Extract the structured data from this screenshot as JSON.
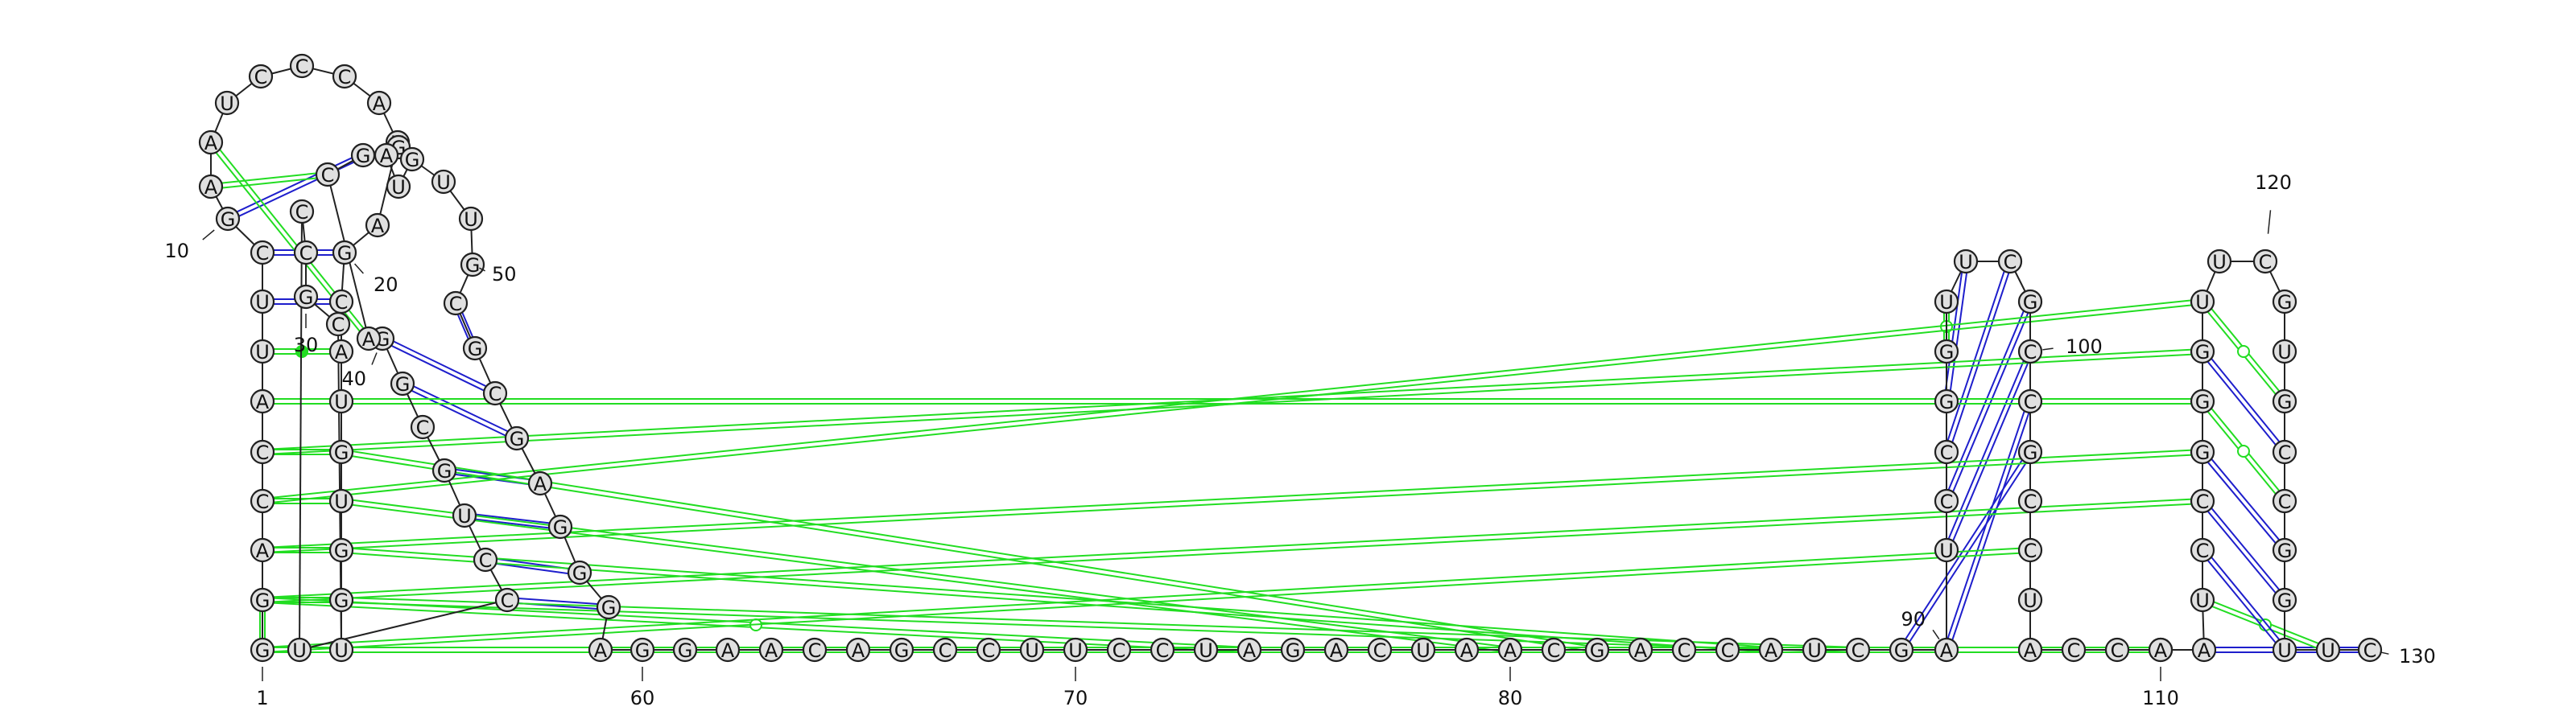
{
  "diagram": {
    "type": "rna-secondary-structure",
    "colors": {
      "canonical_pair": "#1e1ecc",
      "noncanonical_pair": "#22dd22",
      "backbone": "#222222",
      "nucleotide_fill": "#e0e0e0"
    },
    "nucleotides": [
      {
        "i": 1,
        "b": "G"
      },
      {
        "i": 2,
        "b": "G"
      },
      {
        "i": 3,
        "b": "A"
      },
      {
        "i": 4,
        "b": "C"
      },
      {
        "i": 5,
        "b": "C"
      },
      {
        "i": 6,
        "b": "A"
      },
      {
        "i": 7,
        "b": "U"
      },
      {
        "i": 8,
        "b": "U"
      },
      {
        "i": 9,
        "b": "C"
      },
      {
        "i": 10,
        "b": "G"
      },
      {
        "i": 11,
        "b": "A"
      },
      {
        "i": 12,
        "b": "A"
      },
      {
        "i": 13,
        "b": "U"
      },
      {
        "i": 14,
        "b": "C"
      },
      {
        "i": 15,
        "b": "C"
      },
      {
        "i": 16,
        "b": "C"
      },
      {
        "i": 17,
        "b": "A"
      },
      {
        "i": 18,
        "b": "U"
      },
      {
        "i": 19,
        "b": "A"
      },
      {
        "i": 20,
        "b": "G"
      },
      {
        "i": 21,
        "b": "C"
      },
      {
        "i": 22,
        "b": "A"
      },
      {
        "i": 23,
        "b": "U"
      },
      {
        "i": 24,
        "b": "G"
      },
      {
        "i": 25,
        "b": "U"
      },
      {
        "i": 26,
        "b": "G"
      },
      {
        "i": 27,
        "b": "G"
      },
      {
        "i": 28,
        "b": "U"
      },
      {
        "i": 29,
        "b": "C"
      },
      {
        "i": 30,
        "b": "G"
      },
      {
        "i": 31,
        "b": "C"
      },
      {
        "i": 32,
        "b": "C"
      },
      {
        "i": 33,
        "b": "U"
      },
      {
        "i": 34,
        "b": "C"
      },
      {
        "i": 35,
        "b": "C"
      },
      {
        "i": 36,
        "b": "U"
      },
      {
        "i": 37,
        "b": "G"
      },
      {
        "i": 38,
        "b": "C"
      },
      {
        "i": 39,
        "b": "G"
      },
      {
        "i": 40,
        "b": "G"
      },
      {
        "i": 41,
        "b": "A"
      },
      {
        "i": 42,
        "b": "C"
      },
      {
        "i": 43,
        "b": "G"
      },
      {
        "i": 44,
        "b": "G"
      },
      {
        "i": 45,
        "b": "A"
      },
      {
        "i": 46,
        "b": "U"
      },
      {
        "i": 47,
        "b": "G"
      },
      {
        "i": 48,
        "b": "U"
      },
      {
        "i": 49,
        "b": "U"
      },
      {
        "i": 50,
        "b": "G"
      },
      {
        "i": 51,
        "b": "C"
      },
      {
        "i": 52,
        "b": "G"
      },
      {
        "i": 53,
        "b": "C"
      },
      {
        "i": 54,
        "b": "G"
      },
      {
        "i": 55,
        "b": "A"
      },
      {
        "i": 56,
        "b": "G"
      },
      {
        "i": 57,
        "b": "G"
      },
      {
        "i": 58,
        "b": "G"
      },
      {
        "i": 59,
        "b": "A"
      },
      {
        "i": 60,
        "b": "G"
      },
      {
        "i": 61,
        "b": "G"
      },
      {
        "i": 62,
        "b": "A"
      },
      {
        "i": 63,
        "b": "A"
      },
      {
        "i": 64,
        "b": "C"
      },
      {
        "i": 65,
        "b": "A"
      },
      {
        "i": 66,
        "b": "G"
      },
      {
        "i": 67,
        "b": "C"
      },
      {
        "i": 68,
        "b": "C"
      },
      {
        "i": 69,
        "b": "U"
      },
      {
        "i": 70,
        "b": "U"
      },
      {
        "i": 71,
        "b": "C"
      },
      {
        "i": 72,
        "b": "C"
      },
      {
        "i": 73,
        "b": "U"
      },
      {
        "i": 74,
        "b": "A"
      },
      {
        "i": 75,
        "b": "G"
      },
      {
        "i": 76,
        "b": "A"
      },
      {
        "i": 77,
        "b": "C"
      },
      {
        "i": 78,
        "b": "U"
      },
      {
        "i": 79,
        "b": "A"
      },
      {
        "i": 80,
        "b": "A"
      },
      {
        "i": 81,
        "b": "C"
      },
      {
        "i": 82,
        "b": "G"
      },
      {
        "i": 83,
        "b": "A"
      },
      {
        "i": 84,
        "b": "C"
      },
      {
        "i": 85,
        "b": "C"
      },
      {
        "i": 86,
        "b": "A"
      },
      {
        "i": 87,
        "b": "U"
      },
      {
        "i": 88,
        "b": "C"
      },
      {
        "i": 89,
        "b": "G"
      },
      {
        "i": 90,
        "b": "A"
      },
      {
        "i": 91,
        "b": "U"
      },
      {
        "i": 92,
        "b": "C"
      },
      {
        "i": 93,
        "b": "C"
      },
      {
        "i": 94,
        "b": "G"
      },
      {
        "i": 95,
        "b": "G"
      },
      {
        "i": 96,
        "b": "U"
      },
      {
        "i": 97,
        "b": "U"
      },
      {
        "i": 98,
        "b": "C"
      },
      {
        "i": 99,
        "b": "G"
      },
      {
        "i": 100,
        "b": "C"
      },
      {
        "i": 101,
        "b": "C"
      },
      {
        "i": 102,
        "b": "G"
      },
      {
        "i": 103,
        "b": "C"
      },
      {
        "i": 104,
        "b": "C"
      },
      {
        "i": 105,
        "b": "U"
      },
      {
        "i": 106,
        "b": "A"
      },
      {
        "i": 107,
        "b": "C"
      },
      {
        "i": 108,
        "b": "C"
      },
      {
        "i": 109,
        "b": "A"
      },
      {
        "i": 110,
        "b": "A"
      },
      {
        "i": 111,
        "b": "A"
      },
      {
        "i": 112,
        "b": "U"
      },
      {
        "i": 113,
        "b": "C"
      },
      {
        "i": 114,
        "b": "C"
      },
      {
        "i": 115,
        "b": "G"
      },
      {
        "i": 116,
        "b": "G"
      },
      {
        "i": 117,
        "b": "G"
      },
      {
        "i": 118,
        "b": "U"
      },
      {
        "i": 119,
        "b": "U"
      },
      {
        "i": 120,
        "b": "C"
      },
      {
        "i": 121,
        "b": "G"
      },
      {
        "i": 122,
        "b": "U"
      },
      {
        "i": 123,
        "b": "G"
      },
      {
        "i": 124,
        "b": "C"
      },
      {
        "i": 125,
        "b": "C"
      },
      {
        "i": 126,
        "b": "G"
      },
      {
        "i": 127,
        "b": "G"
      },
      {
        "i": 128,
        "b": "U"
      },
      {
        "i": 129,
        "b": "U"
      },
      {
        "i": 130,
        "b": "C"
      }
    ],
    "pairs": [
      {
        "a": 1,
        "b": 2,
        "kind": "noncanonical"
      },
      {
        "a": 9,
        "b": 20,
        "kind": "canonical"
      },
      {
        "a": 8,
        "b": 21,
        "kind": "canonical"
      },
      {
        "a": 7,
        "b": 22,
        "kind": "noncanonical_dot"
      },
      {
        "a": 6,
        "b": 23,
        "kind": "canonical"
      },
      {
        "a": 5,
        "b": 24,
        "kind": "noncanonical"
      },
      {
        "a": 4,
        "b": 25,
        "kind": "noncanonical"
      },
      {
        "a": 3,
        "b": 26,
        "kind": "noncanonical"
      },
      {
        "a": 2,
        "b": 27,
        "kind": "noncanonical"
      },
      {
        "a": 10,
        "b": 43,
        "kind": "canonical"
      },
      {
        "a": 11,
        "b": 42,
        "kind": "noncanonical"
      },
      {
        "a": 12,
        "b": 41,
        "kind": "noncanonical"
      },
      {
        "a": 51,
        "b": 52,
        "kind": "canonical"
      },
      {
        "a": 40,
        "b": 53,
        "kind": "canonical"
      },
      {
        "a": 39,
        "b": 54,
        "kind": "canonical"
      },
      {
        "a": 37,
        "b": 55,
        "kind": "canonical"
      },
      {
        "a": 36,
        "b": 56,
        "kind": "canonical"
      },
      {
        "a": 35,
        "b": 57,
        "kind": "canonical"
      },
      {
        "a": 34,
        "b": 58,
        "kind": "canonical"
      },
      {
        "a": 89,
        "b": 102,
        "kind": "canonical"
      },
      {
        "a": 90,
        "b": 101,
        "kind": "canonical"
      },
      {
        "a": 91,
        "b": 100,
        "kind": "canonical"
      },
      {
        "a": 92,
        "b": 99,
        "kind": "canonical"
      },
      {
        "a": 93,
        "b": 98,
        "kind": "canonical"
      },
      {
        "a": 94,
        "b": 97,
        "kind": "canonical"
      },
      {
        "a": 95,
        "b": 96,
        "kind": "noncanonical_dot"
      },
      {
        "a": 111,
        "b": 130,
        "kind": "canonical"
      },
      {
        "a": 112,
        "b": 129,
        "kind": "noncanonical_dot"
      },
      {
        "a": 113,
        "b": 128,
        "kind": "canonical"
      },
      {
        "a": 114,
        "b": 127,
        "kind": "canonical"
      },
      {
        "a": 115,
        "b": 126,
        "kind": "canonical"
      },
      {
        "a": 116,
        "b": 125,
        "kind": "noncanonical_dot"
      },
      {
        "a": 117,
        "b": 124,
        "kind": "canonical"
      },
      {
        "a": 118,
        "b": 123,
        "kind": "noncanonical_dot"
      },
      {
        "a": 4,
        "b": 118,
        "kind": "noncanonical"
      },
      {
        "a": 5,
        "b": 117,
        "kind": "noncanonical"
      },
      {
        "a": 6,
        "b": 116,
        "kind": "noncanonical"
      },
      {
        "a": 3,
        "b": 115,
        "kind": "noncanonical"
      },
      {
        "a": 2,
        "b": 114,
        "kind": "noncanonical"
      },
      {
        "a": 25,
        "b": 80,
        "kind": "noncanonical"
      },
      {
        "a": 24,
        "b": 82,
        "kind": "noncanonical"
      },
      {
        "a": 26,
        "b": 86,
        "kind": "noncanonical"
      },
      {
        "a": 27,
        "b": 88,
        "kind": "noncanonical"
      },
      {
        "a": 2,
        "b": 74,
        "kind": "noncanonical_dot"
      },
      {
        "a": 1,
        "b": 104,
        "kind": "noncanonical"
      },
      {
        "a": 1,
        "b": 109,
        "kind": "noncanonical"
      }
    ],
    "labels": [
      {
        "nt": 1,
        "text": "1"
      },
      {
        "nt": 10,
        "text": "10"
      },
      {
        "nt": 20,
        "text": "20"
      },
      {
        "nt": 30,
        "text": "30"
      },
      {
        "nt": 40,
        "text": "40"
      },
      {
        "nt": 50,
        "text": "50"
      },
      {
        "nt": 60,
        "text": "60"
      },
      {
        "nt": 70,
        "text": "70"
      },
      {
        "nt": 80,
        "text": "80"
      },
      {
        "nt": 90,
        "text": "90"
      },
      {
        "nt": 100,
        "text": "100"
      },
      {
        "nt": 110,
        "text": "110"
      },
      {
        "nt": 120,
        "text": "120"
      },
      {
        "nt": 130,
        "text": "130"
      }
    ]
  }
}
